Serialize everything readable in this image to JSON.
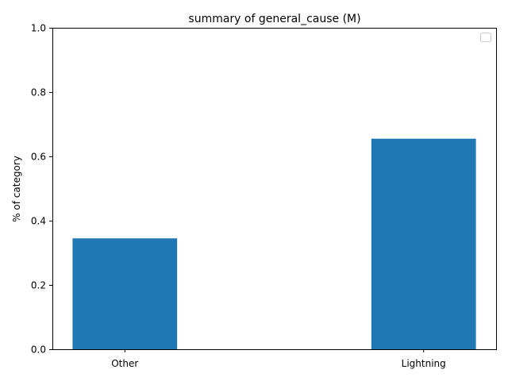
{
  "chart_data": {
    "type": "bar",
    "title": "summary of general_cause (M)",
    "xlabel": "",
    "ylabel": "% of category",
    "categories": [
      "Other",
      "Lightning"
    ],
    "values": [
      0.345,
      0.655
    ],
    "ylim": [
      0,
      1
    ],
    "yticks": [
      0.0,
      0.2,
      0.4,
      0.6,
      0.8,
      1.0
    ],
    "ytick_labels": [
      "0.0",
      "0.2",
      "0.4",
      "0.6",
      "0.8",
      "1.0"
    ],
    "bar_color": "#1f77b4",
    "grid": false,
    "legend": {
      "placement": "top-right",
      "entries": []
    }
  }
}
